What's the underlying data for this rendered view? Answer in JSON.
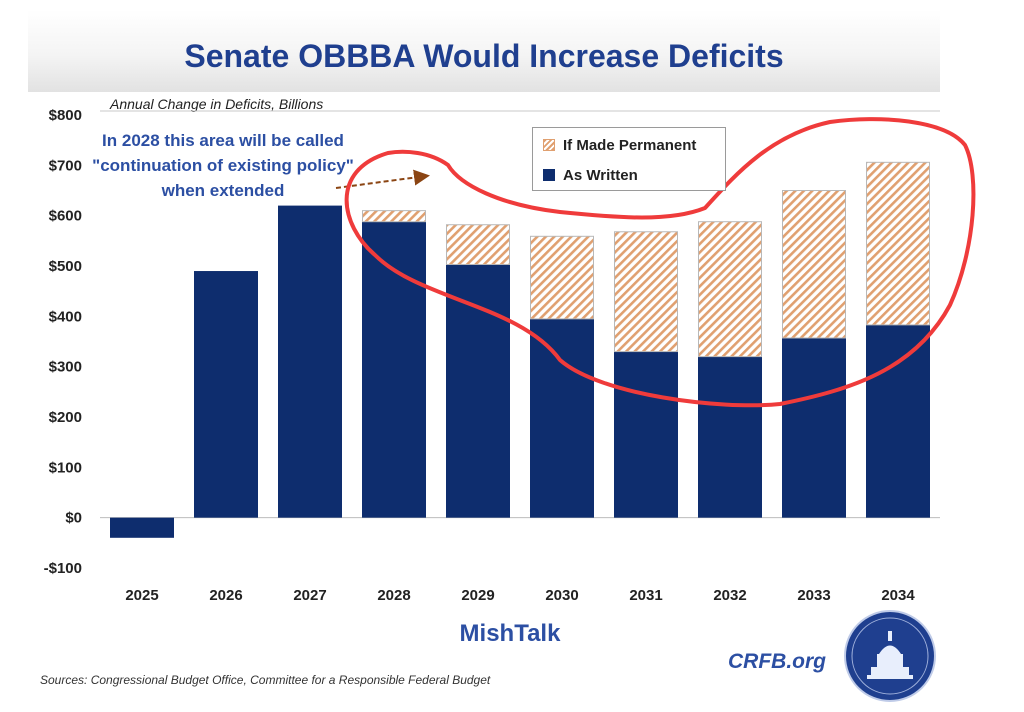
{
  "header": {
    "title": "Senate OBBBA Would Increase Deficits",
    "subtitle": "Annual Change in Deficits, Billions"
  },
  "annotation": "In 2028 this area will be called \"continuation of existing policy\" when extended",
  "watermark": "MishTalk",
  "footer": {
    "sources": "Sources: Congressional Budget Office, Committee for a Responsible Federal Budget",
    "brand": "CRFB.org"
  },
  "colors": {
    "as_written": "#0e2d6e",
    "if_made_permanent": "#e0a070",
    "title": "#1f3f8f",
    "annotation_text": "#2c4fa3",
    "highlight": "#ef3b3b",
    "arrow": "#8b4513"
  },
  "icons": {
    "seal": "capitol-seal-icon",
    "arrow": "dashed-arrow-icon"
  },
  "chart_data": {
    "type": "bar",
    "stacked": true,
    "categories": [
      "2025",
      "2026",
      "2027",
      "2028",
      "2029",
      "2030",
      "2031",
      "2032",
      "2033",
      "2034"
    ],
    "series": [
      {
        "name": "As Written",
        "values": [
          -40,
          490,
          620,
          588,
          503,
          395,
          330,
          320,
          357,
          383
        ]
      },
      {
        "name": "If Made Permanent",
        "values": [
          0,
          0,
          0,
          22,
          79,
          164,
          238,
          268,
          293,
          323
        ]
      }
    ],
    "ylim": [
      -100,
      800
    ],
    "yticks": [
      -100,
      0,
      100,
      200,
      300,
      400,
      500,
      600,
      700,
      800
    ],
    "ytick_labels": [
      "-$100",
      "$0",
      "$100",
      "$200",
      "$300",
      "$400",
      "$500",
      "$600",
      "$700",
      "$800"
    ],
    "xlabel": "",
    "ylabel": "",
    "legend_position": "top-center",
    "grid": false
  }
}
